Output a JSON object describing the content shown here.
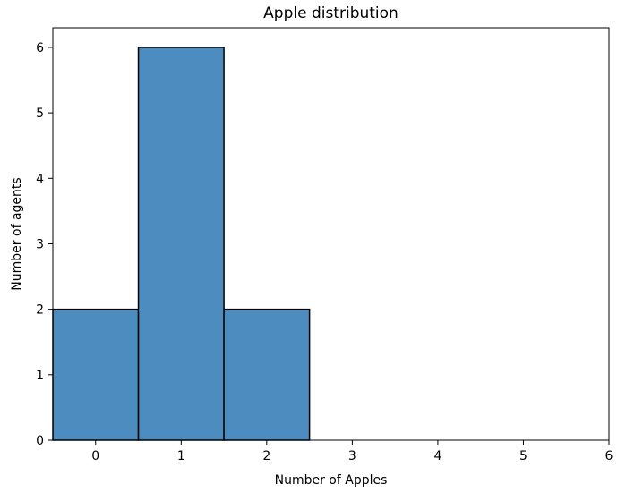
{
  "chart_data": {
    "type": "bar",
    "title": "Apple distribution",
    "xlabel": "Number of Apples",
    "ylabel": "Number of agents",
    "bins": [
      {
        "x_start": -0.5,
        "x_end": 0.5,
        "value": 2
      },
      {
        "x_start": 0.5,
        "x_end": 1.5,
        "value": 6
      },
      {
        "x_start": 1.5,
        "x_end": 2.5,
        "value": 2
      }
    ],
    "xlim": [
      -0.5,
      6
    ],
    "ylim": [
      0,
      6.3
    ],
    "x_ticks": [
      0,
      1,
      2,
      3,
      4,
      5,
      6
    ],
    "y_ticks": [
      0,
      1,
      2,
      3,
      4,
      5,
      6
    ],
    "x_tick_labels": [
      "0",
      "1",
      "2",
      "3",
      "4",
      "5",
      "6"
    ],
    "y_tick_labels": [
      "0",
      "1",
      "2",
      "3",
      "4",
      "5",
      "6"
    ],
    "grid": false,
    "bar_color": "#4c8cbf",
    "bar_edge_color": "#000000"
  }
}
